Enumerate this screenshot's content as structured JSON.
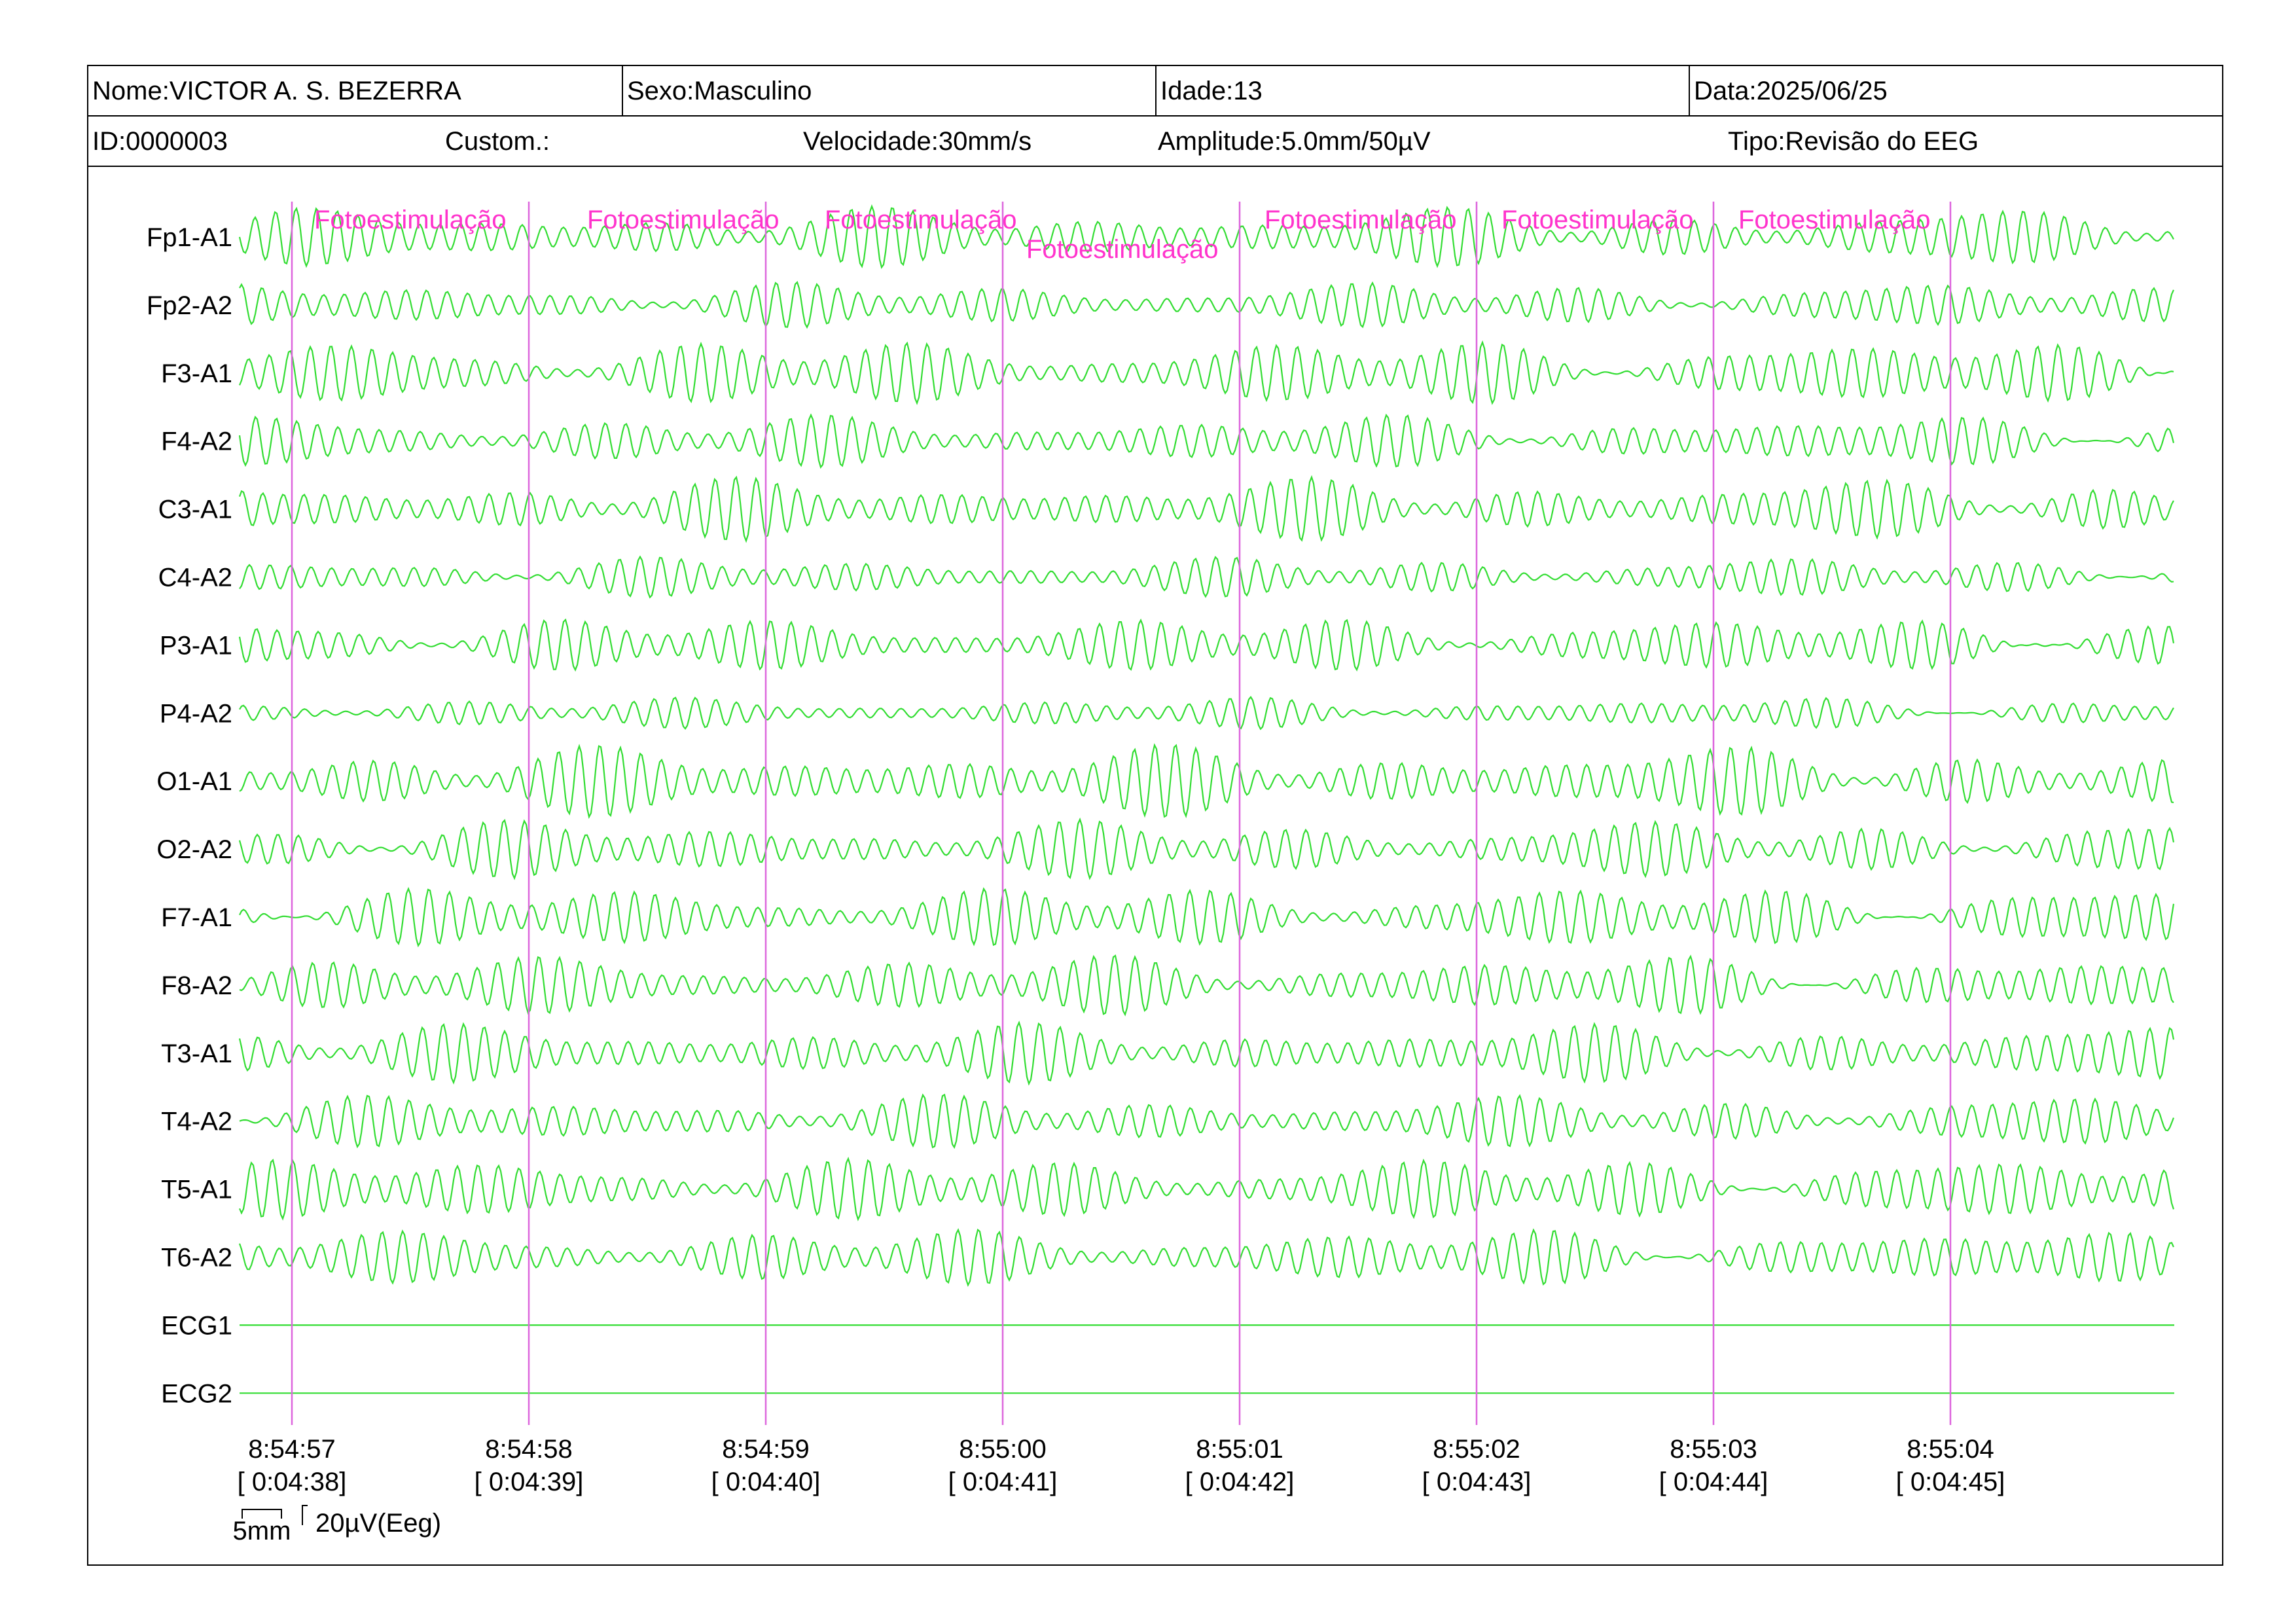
{
  "header": {
    "name": "Nome:VICTOR A. S. BEZERRA",
    "sex": "Sexo:Masculino",
    "age": "Idade:13",
    "date": "Data:2025/06/25",
    "id": "ID:0000003",
    "custom": "Custom.:",
    "speed": "Velocidade:30mm/s",
    "amplitude": "Amplitude:5.0mm/50µV",
    "type": "Tipo:Revisão do EEG"
  },
  "channels": [
    "Fp1-A1",
    "Fp2-A2",
    "F3-A1",
    "F4-A2",
    "C3-A1",
    "C4-A2",
    "P3-A1",
    "P4-A2",
    "O1-A1",
    "O2-A2",
    "F7-A1",
    "F8-A2",
    "T3-A1",
    "T4-A2",
    "T5-A1",
    "T6-A2",
    "ECG1",
    "ECG2"
  ],
  "time_marks": [
    {
      "clock": "8:54:57",
      "elapsed": "[ 0:04:38]"
    },
    {
      "clock": "8:54:58",
      "elapsed": "[ 0:04:39]"
    },
    {
      "clock": "8:54:59",
      "elapsed": "[ 0:04:40]"
    },
    {
      "clock": "8:55:00",
      "elapsed": "[ 0:04:41]"
    },
    {
      "clock": "8:55:01",
      "elapsed": "[ 0:04:42]"
    },
    {
      "clock": "8:55:02",
      "elapsed": "[ 0:04:43]"
    },
    {
      "clock": "8:55:03",
      "elapsed": "[ 0:04:44]"
    },
    {
      "clock": "8:55:04",
      "elapsed": "[ 0:04:45]"
    }
  ],
  "events": [
    {
      "label": "Fotoestimulação"
    },
    {
      "label": "Fotoestimulação"
    },
    {
      "label": "Fotoestimulação"
    },
    {
      "label": "Fotoestimulação"
    },
    {
      "label": "Fotoestimulação"
    },
    {
      "label": "Fotoestimulação"
    },
    {
      "label": "Fotoestimulação"
    }
  ],
  "scale": {
    "time": "5mm",
    "amplitude": "20µV(Eeg)"
  },
  "colors": {
    "trace": "#33dd33",
    "marker": "#dd66dd",
    "event_text": "#ff33cc",
    "border": "#000000"
  }
}
